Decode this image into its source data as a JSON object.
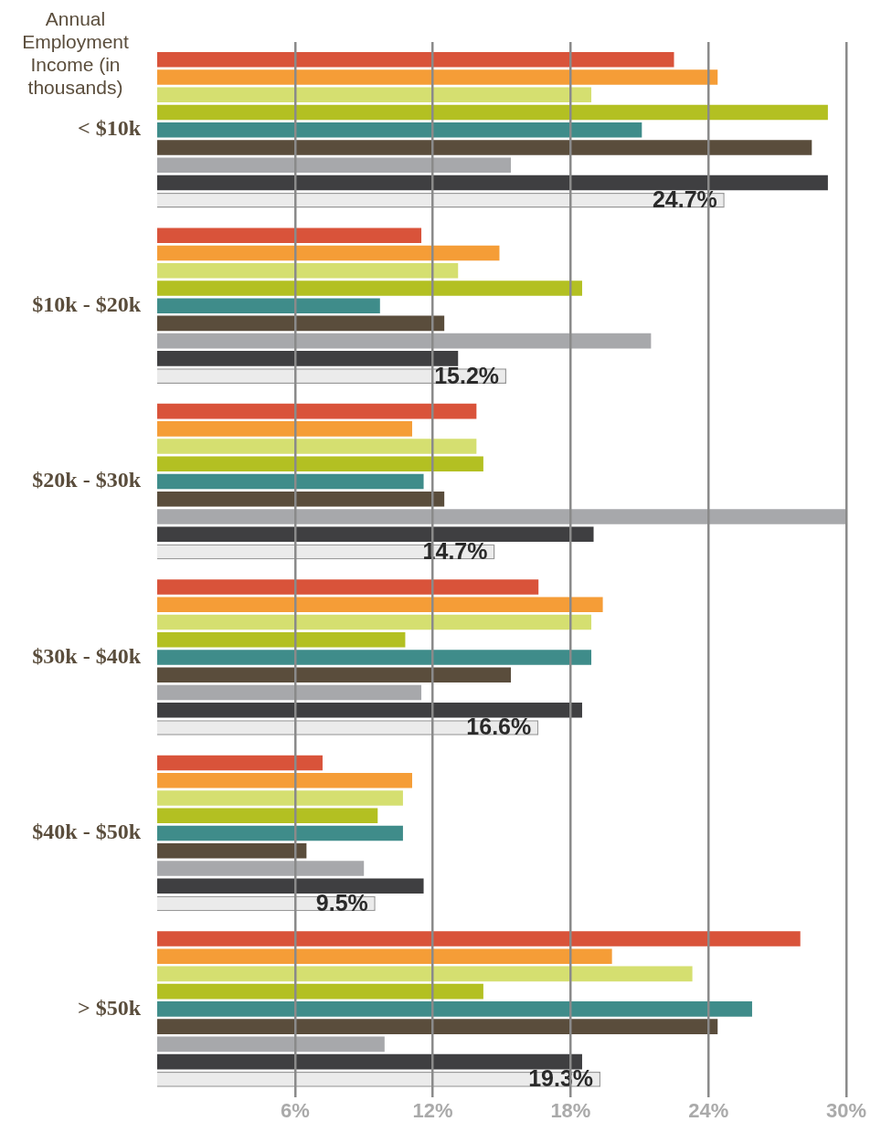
{
  "chart_data": {
    "type": "bar",
    "orientation": "horizontal",
    "ylabel": "Annual Employment Income (in thousands)",
    "categories": [
      "< $10k",
      "$10k - $20k",
      "$20k - $30k",
      "$30k - $40k",
      "$40k - $50k",
      "> $50k"
    ],
    "series": [
      {
        "color": "#d9533a",
        "values": [
          22.5,
          11.5,
          13.9,
          16.6,
          7.2,
          28.0
        ]
      },
      {
        "color": "#f59d37",
        "values": [
          24.4,
          14.9,
          11.1,
          19.4,
          11.1,
          19.8
        ]
      },
      {
        "color": "#d5df70",
        "values": [
          18.9,
          13.1,
          13.9,
          18.9,
          10.7,
          23.3
        ]
      },
      {
        "color": "#b3c022",
        "values": [
          29.2,
          18.5,
          14.2,
          10.8,
          9.6,
          14.2
        ]
      },
      {
        "color": "#3f8c8a",
        "values": [
          21.1,
          9.7,
          11.6,
          18.9,
          10.7,
          25.9
        ]
      },
      {
        "color": "#5a4d3c",
        "values": [
          28.5,
          12.5,
          12.5,
          15.4,
          6.5,
          24.4
        ]
      },
      {
        "color": "#a7a8ab",
        "values": [
          15.4,
          21.5,
          30.0,
          11.5,
          9.0,
          9.9
        ]
      },
      {
        "color": "#3f3f41",
        "values": [
          29.2,
          13.1,
          19.0,
          18.5,
          11.6,
          18.5
        ]
      },
      {
        "color": "#ebebeb",
        "values": [
          24.7,
          15.2,
          14.7,
          16.6,
          9.5,
          19.3
        ],
        "value_labels": [
          "24.7%",
          "15.2%",
          "14.7%",
          "16.6%",
          "9.5%",
          "19.3%"
        ]
      }
    ],
    "xlim": [
      0,
      30
    ],
    "xticks": [
      {
        "value": 6,
        "label": "6%"
      },
      {
        "value": 12,
        "label": "12%"
      },
      {
        "value": 18,
        "label": "18%"
      },
      {
        "value": 24,
        "label": "24%"
      },
      {
        "value": 30,
        "label": "30%"
      }
    ],
    "grid": "x"
  }
}
